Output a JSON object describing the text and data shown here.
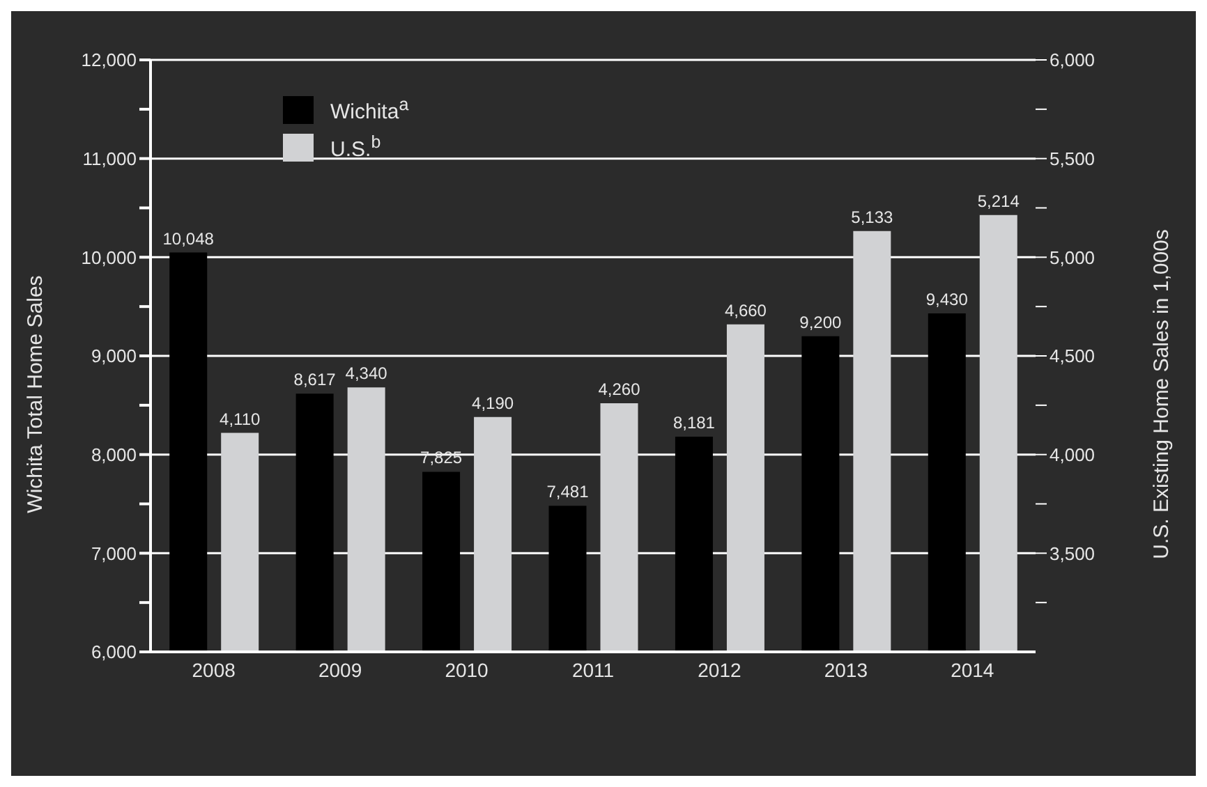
{
  "chart_data": {
    "type": "bar",
    "categories": [
      "2008",
      "2009",
      "2010",
      "2011",
      "2012",
      "2013",
      "2014"
    ],
    "ylabel": "Wichita Total Home Sales",
    "y2label": "U.S. Existing Home Sales in 1,000s",
    "series": [
      {
        "name": "Wichita$^{a}$",
        "color": "#000000",
        "values": [
          10048,
          8617,
          7825,
          7481,
          8181,
          9200,
          9430
        ],
        "value_labels": [
          "10,048",
          "8,617",
          "7,825",
          "7,481",
          "8,181",
          "9,200",
          "9,430"
        ]
      },
      {
        "name": "U.S.$^{b}$",
        "color": "#d1d2d4",
        "axis": "y2",
        "values": [
          4110,
          4340,
          4190,
          4260,
          4660,
          5133,
          5214
        ],
        "value_labels": [
          "4,110",
          "4,340",
          "4,190",
          "4,260",
          "4,660",
          "5,133",
          "5,214"
        ]
      }
    ],
    "ylim": [
      6000,
      12000
    ],
    "yticks": [
      {
        "value": 6000,
        "label": "6,000"
      },
      {
        "value": 6500,
        "label": null
      },
      {
        "value": 7000,
        "label": "7,000"
      },
      {
        "value": 7500,
        "label": null
      },
      {
        "value": 8000,
        "label": "8,000"
      },
      {
        "value": 8500,
        "label": null
      },
      {
        "value": 9000,
        "label": "9,000"
      },
      {
        "value": 9500,
        "label": null
      },
      {
        "value": 10000,
        "label": "10,000"
      },
      {
        "value": 10500,
        "label": null
      },
      {
        "value": 11000,
        "label": "11,000"
      },
      {
        "value": 11500,
        "label": null
      },
      {
        "value": 12000,
        "label": "12,000"
      }
    ],
    "y2lim": [
      3000,
      6000
    ],
    "y2ticks": [
      {
        "value": 3250,
        "label": null
      },
      {
        "value": 3500,
        "label": "3,500"
      },
      {
        "value": 3750,
        "label": null
      },
      {
        "value": 4000,
        "label": "4,000"
      },
      {
        "value": 4250,
        "label": null
      },
      {
        "value": 4500,
        "label": "4,500"
      },
      {
        "value": 4750,
        "label": null
      },
      {
        "value": 5000,
        "label": "5,000"
      },
      {
        "value": 5250,
        "label": null
      },
      {
        "value": 5500,
        "label": "5,500"
      },
      {
        "value": 5750,
        "label": null
      },
      {
        "value": 6000,
        "label": "6,000"
      }
    ],
    "grid": "y",
    "legend": "top left"
  }
}
